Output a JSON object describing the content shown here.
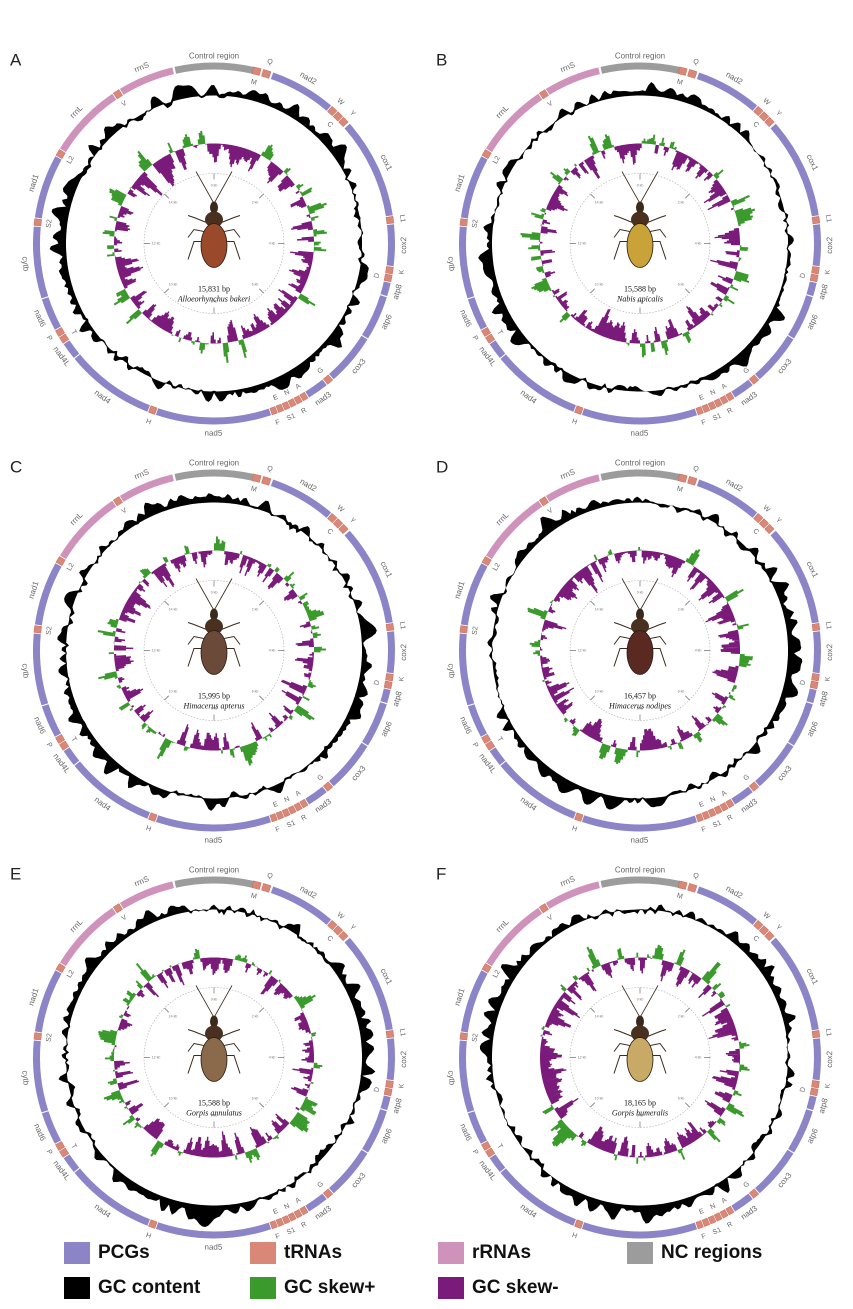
{
  "colors": {
    "pcg": "#8b84c7",
    "trna": "#d98777",
    "rrna": "#cf92ba",
    "nc": "#9c9c9c",
    "gc_content": "#000000",
    "skew_pos": "#3a9a2c",
    "skew_neg": "#7a1a7a"
  },
  "panels": [
    {
      "letter": "A",
      "size": "15,831 bp",
      "species": "Alloeorhynchus bakeri",
      "insect_color": "#9a4a2a"
    },
    {
      "letter": "B",
      "size": "15,588 bp",
      "species": "Nabis apicalis",
      "insect_color": "#c9a238"
    },
    {
      "letter": "C",
      "size": "15,995 bp",
      "species": "Himacerus apterus",
      "insect_color": "#6b4a3a"
    },
    {
      "letter": "D",
      "size": "16,457 bp",
      "species": "Himacerus nodipes",
      "insect_color": "#5a2a22"
    },
    {
      "letter": "E",
      "size": "15,588 bp",
      "species": "Gorpis annulatus",
      "insect_color": "#8a6a4a"
    },
    {
      "letter": "F",
      "size": "18,165 bp",
      "species": "Gorpis humeralis",
      "insect_color": "#c8aa66"
    }
  ],
  "genes": [
    {
      "label": "Control region",
      "kind": "nc",
      "start": 0.965,
      "end": 0.035
    },
    {
      "label": "M",
      "kind": "trna",
      "start": 0.035,
      "end": 0.042
    },
    {
      "label": "Q",
      "kind": "trna",
      "start": 0.044,
      "end": 0.051
    },
    {
      "label": "nad2",
      "kind": "pcg",
      "start": 0.053,
      "end": 0.112
    },
    {
      "label": "W",
      "kind": "trna",
      "start": 0.113,
      "end": 0.119
    },
    {
      "label": "C",
      "kind": "trna",
      "start": 0.12,
      "end": 0.126
    },
    {
      "label": "Y",
      "kind": "trna",
      "start": 0.127,
      "end": 0.133
    },
    {
      "label": "cox1",
      "kind": "pcg",
      "start": 0.135,
      "end": 0.225
    },
    {
      "label": "L1",
      "kind": "trna",
      "start": 0.226,
      "end": 0.232
    },
    {
      "label": "cox2",
      "kind": "pcg",
      "start": 0.233,
      "end": 0.27
    },
    {
      "label": "K",
      "kind": "trna",
      "start": 0.271,
      "end": 0.277
    },
    {
      "label": "D",
      "kind": "trna",
      "start": 0.278,
      "end": 0.284
    },
    {
      "label": "atp8",
      "kind": "pcg",
      "start": 0.285,
      "end": 0.297
    },
    {
      "label": "atp6",
      "kind": "pcg",
      "start": 0.298,
      "end": 0.338
    },
    {
      "label": "cox3",
      "kind": "pcg",
      "start": 0.339,
      "end": 0.385
    },
    {
      "label": "G",
      "kind": "trna",
      "start": 0.386,
      "end": 0.392
    },
    {
      "label": "nad3",
      "kind": "pcg",
      "start": 0.393,
      "end": 0.412
    },
    {
      "label": "A",
      "kind": "trna",
      "start": 0.413,
      "end": 0.418
    },
    {
      "label": "R",
      "kind": "trna",
      "start": 0.419,
      "end": 0.424
    },
    {
      "label": "N",
      "kind": "trna",
      "start": 0.425,
      "end": 0.43
    },
    {
      "label": "S1",
      "kind": "trna",
      "start": 0.431,
      "end": 0.436
    },
    {
      "label": "E",
      "kind": "trna",
      "start": 0.437,
      "end": 0.442
    },
    {
      "label": "F",
      "kind": "trna",
      "start": 0.443,
      "end": 0.448
    },
    {
      "label": "nad5",
      "kind": "pcg",
      "start": 0.449,
      "end": 0.552
    },
    {
      "label": "H",
      "kind": "trna",
      "start": 0.553,
      "end": 0.559
    },
    {
      "label": "nad4",
      "kind": "pcg",
      "start": 0.56,
      "end": 0.64
    },
    {
      "label": "nad4L",
      "kind": "pcg",
      "start": 0.641,
      "end": 0.656
    },
    {
      "label": "T",
      "kind": "trna",
      "start": 0.657,
      "end": 0.663
    },
    {
      "label": "P",
      "kind": "trna",
      "start": 0.664,
      "end": 0.67
    },
    {
      "label": "nad6",
      "kind": "pcg",
      "start": 0.671,
      "end": 0.7
    },
    {
      "label": "cytb",
      "kind": "pcg",
      "start": 0.701,
      "end": 0.765
    },
    {
      "label": "S2",
      "kind": "trna",
      "start": 0.766,
      "end": 0.772
    },
    {
      "label": "nad1",
      "kind": "pcg",
      "start": 0.773,
      "end": 0.83
    },
    {
      "label": "L2",
      "kind": "trna",
      "start": 0.831,
      "end": 0.837
    },
    {
      "label": "rrnL",
      "kind": "rrna",
      "start": 0.838,
      "end": 0.905
    },
    {
      "label": "V",
      "kind": "trna",
      "start": 0.906,
      "end": 0.912
    },
    {
      "label": "rrnS",
      "kind": "rrna",
      "start": 0.913,
      "end": 0.963
    }
  ],
  "scale_ticks": [
    "0 kb",
    "2 kb",
    "4 kb",
    "6 kb",
    "8 kb",
    "10 kb",
    "12 kb",
    "14 kb"
  ],
  "legend": [
    {
      "label": "PCGs",
      "color_key": "pcg"
    },
    {
      "label": "tRNAs",
      "color_key": "trna"
    },
    {
      "label": "rRNAs",
      "color_key": "rrna"
    },
    {
      "label": "NC regions",
      "color_key": "nc"
    },
    {
      "label": "GC content",
      "color_key": "gc_content"
    },
    {
      "label": "GC skew+",
      "color_key": "skew_pos"
    },
    {
      "label": "GC skew-",
      "color_key": "skew_neg"
    }
  ]
}
